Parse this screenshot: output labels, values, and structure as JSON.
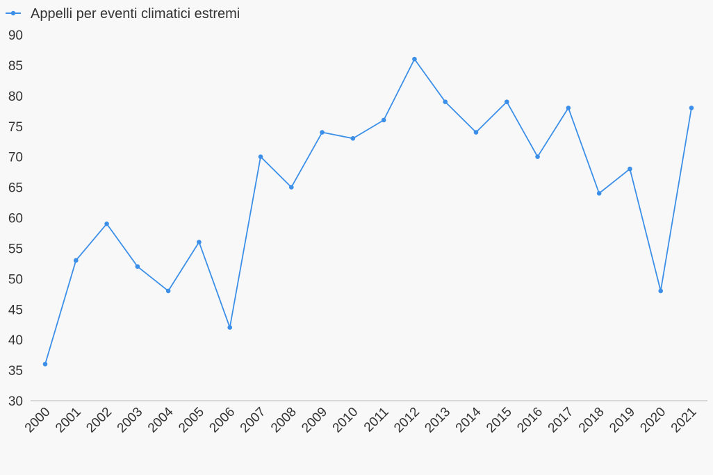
{
  "chart_data": {
    "type": "line",
    "title": "",
    "xlabel": "",
    "ylabel": "",
    "categories": [
      "2000",
      "2001",
      "2002",
      "2003",
      "2004",
      "2005",
      "2006",
      "2007",
      "2008",
      "2009",
      "2010",
      "2011",
      "2012",
      "2013",
      "2014",
      "2015",
      "2016",
      "2017",
      "2018",
      "2019",
      "2020",
      "2021"
    ],
    "series": [
      {
        "name": "Appelli per eventi climatici estremi",
        "color": "#3b8fe8",
        "values": [
          36,
          53,
          59,
          52,
          48,
          56,
          42,
          70,
          65,
          74,
          73,
          76,
          86,
          79,
          74,
          79,
          70,
          78,
          64,
          68,
          48,
          78
        ]
      }
    ],
    "ylim": [
      30,
      90
    ],
    "yticks": [
      30,
      35,
      40,
      45,
      50,
      55,
      60,
      65,
      70,
      75,
      80,
      85,
      90
    ],
    "grid": false,
    "legend": "top-left",
    "axis_color": "#cccccc"
  }
}
